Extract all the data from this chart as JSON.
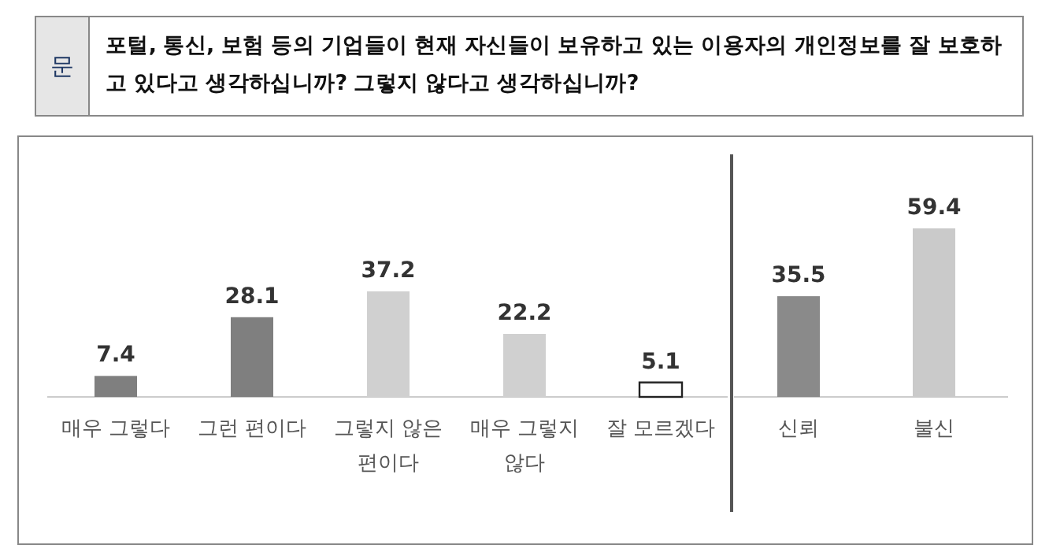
{
  "chart_data": [
    {
      "type": "bar",
      "title": "포털, 통신, 보험 등의 기업들이 현재 자신들이 보유하고 있는 이용자의 개인정보를 잘 보호하고 있다고 생각하십니까? 그렇지 않다고 생각하십니까?",
      "annotations": [
        "문"
      ],
      "categories": [
        "매우 그렇다",
        "그런 편이다",
        "그렇지 않은 편이다",
        "매우 그렇지 않다",
        "잘 모르겠다"
      ],
      "values": [
        7.4,
        28.1,
        37.2,
        22.2,
        5.1
      ],
      "colors": [
        "#7f7f7f",
        "#7f7f7f",
        "#d0d0d0",
        "#d0d0d0",
        "#ffffff"
      ],
      "data_labels": true
    },
    {
      "type": "bar",
      "categories": [
        "신뢰",
        "불신"
      ],
      "values": [
        35.5,
        59.4
      ],
      "colors": [
        "#8a8a8a",
        "#cacaca"
      ],
      "data_labels": true
    }
  ]
}
